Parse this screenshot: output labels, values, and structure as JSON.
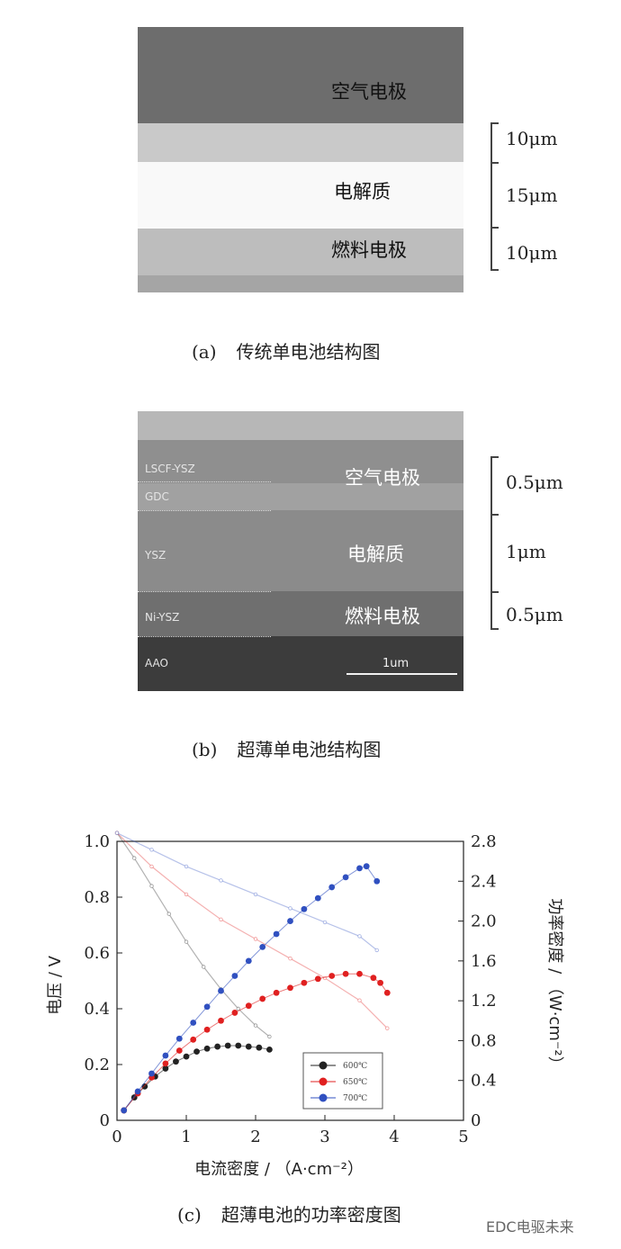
{
  "panel_a": {
    "layers": {
      "air": "空气电极",
      "electrolyte": "电解质",
      "fuel": "燃料电极"
    },
    "scale": [
      "10μm",
      "15μm",
      "10μm"
    ],
    "caption_tag": "(a)",
    "caption_text": "传统单电池结构图"
  },
  "panel_b": {
    "sem_labels": [
      "LSCF-YSZ",
      "GDC",
      "YSZ",
      "Ni-YSZ",
      "AAO"
    ],
    "sem_scale": "1um",
    "layers": {
      "air": "空气电极",
      "electrolyte": "电解质",
      "fuel": "燃料电极"
    },
    "scale": [
      "0.5μm",
      "1μm",
      "0.5μm"
    ],
    "caption_tag": "(b)",
    "caption_text": "超薄单电池结构图"
  },
  "panel_c": {
    "caption_tag": "(c)",
    "caption_text": "超薄电池的功率密度图"
  },
  "chart_data": {
    "type": "line",
    "xlabel": "电流密度 / （A·cm⁻²）",
    "ylabel": "电压 / V",
    "y2label": "功率密度 / （W·cm⁻²）",
    "xlim": [
      0,
      5
    ],
    "ylim": [
      0,
      1.0
    ],
    "y2lim": [
      0,
      2.8
    ],
    "x_ticks": [
      "0",
      "1",
      "2",
      "3",
      "4",
      "5"
    ],
    "y_ticks": [
      "0",
      "0.2",
      "0.4",
      "0.6",
      "0.8",
      "1.0"
    ],
    "y2_ticks": [
      "0",
      "0.4",
      "0.8",
      "1.2",
      "1.6",
      "2.0",
      "2.4",
      "2.8"
    ],
    "legend": [
      "600℃",
      "650℃",
      "700℃"
    ],
    "legend_position": "lower-right",
    "colors": {
      "600": "#222222",
      "650": "#e02020",
      "700": "#3050c0"
    },
    "series": [
      {
        "name": "600℃",
        "kind": "voltage",
        "x": [
          0,
          0.25,
          0.5,
          0.75,
          1.0,
          1.25,
          1.5,
          1.75,
          2.0,
          2.2
        ],
        "values": [
          1.03,
          0.94,
          0.84,
          0.74,
          0.64,
          0.55,
          0.47,
          0.4,
          0.34,
          0.3
        ]
      },
      {
        "name": "650℃",
        "kind": "voltage",
        "x": [
          0,
          0.5,
          1.0,
          1.5,
          2.0,
          2.5,
          3.0,
          3.5,
          3.9
        ],
        "values": [
          1.03,
          0.91,
          0.81,
          0.72,
          0.65,
          0.58,
          0.51,
          0.43,
          0.33
        ]
      },
      {
        "name": "700℃",
        "kind": "voltage",
        "x": [
          0,
          0.5,
          1.0,
          1.5,
          2.0,
          2.5,
          3.0,
          3.5,
          3.75
        ],
        "values": [
          1.03,
          0.97,
          0.91,
          0.86,
          0.81,
          0.76,
          0.71,
          0.66,
          0.61
        ]
      },
      {
        "name": "600℃",
        "kind": "power",
        "x": [
          0.1,
          0.25,
          0.4,
          0.55,
          0.7,
          0.85,
          1.0,
          1.15,
          1.3,
          1.45,
          1.6,
          1.75,
          1.9,
          2.05,
          2.2
        ],
        "values": [
          0.1,
          0.23,
          0.34,
          0.44,
          0.52,
          0.59,
          0.64,
          0.69,
          0.72,
          0.74,
          0.75,
          0.75,
          0.74,
          0.73,
          0.71
        ]
      },
      {
        "name": "650℃",
        "kind": "power",
        "x": [
          0.1,
          0.3,
          0.5,
          0.7,
          0.9,
          1.1,
          1.3,
          1.5,
          1.7,
          1.9,
          2.1,
          2.3,
          2.5,
          2.7,
          2.9,
          3.1,
          3.3,
          3.5,
          3.7,
          3.8,
          3.9
        ],
        "values": [
          0.1,
          0.27,
          0.43,
          0.57,
          0.7,
          0.81,
          0.91,
          1.0,
          1.08,
          1.15,
          1.22,
          1.28,
          1.33,
          1.38,
          1.42,
          1.45,
          1.47,
          1.47,
          1.43,
          1.38,
          1.28
        ]
      },
      {
        "name": "700℃",
        "kind": "power",
        "x": [
          0.1,
          0.3,
          0.5,
          0.7,
          0.9,
          1.1,
          1.3,
          1.5,
          1.7,
          1.9,
          2.1,
          2.3,
          2.5,
          2.7,
          2.9,
          3.1,
          3.3,
          3.5,
          3.6,
          3.75
        ],
        "values": [
          0.1,
          0.29,
          0.47,
          0.65,
          0.82,
          0.98,
          1.14,
          1.3,
          1.45,
          1.6,
          1.74,
          1.87,
          2.0,
          2.12,
          2.23,
          2.34,
          2.44,
          2.53,
          2.55,
          2.4
        ]
      }
    ]
  },
  "watermark": "EDC电驱未来"
}
